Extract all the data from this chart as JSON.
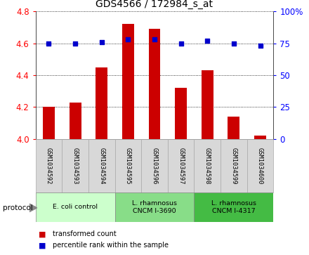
{
  "title": "GDS4566 / 172984_s_at",
  "samples": [
    "GSM1034592",
    "GSM1034593",
    "GSM1034594",
    "GSM1034595",
    "GSM1034596",
    "GSM1034597",
    "GSM1034598",
    "GSM1034599",
    "GSM1034600"
  ],
  "bar_values": [
    4.2,
    4.23,
    4.45,
    4.72,
    4.69,
    4.32,
    4.43,
    4.14,
    4.02
  ],
  "dot_values": [
    75,
    75,
    76,
    78,
    78,
    75,
    77,
    75,
    73
  ],
  "bar_color": "#cc0000",
  "dot_color": "#0000cc",
  "ylim_left": [
    4.0,
    4.8
  ],
  "ylim_right": [
    0,
    100
  ],
  "yticks_left": [
    4.0,
    4.2,
    4.4,
    4.6,
    4.8
  ],
  "yticks_right": [
    0,
    25,
    50,
    75,
    100
  ],
  "ytick_labels_right": [
    "0",
    "25",
    "50",
    "75",
    "100%"
  ],
  "groups": [
    {
      "label": "E. coli control",
      "start": 0,
      "end": 3,
      "color": "#ccffcc"
    },
    {
      "label": "L. rhamnosus\nCNCM I-3690",
      "start": 3,
      "end": 6,
      "color": "#88dd88"
    },
    {
      "label": "L. rhamnosus\nCNCM I-4317",
      "start": 6,
      "end": 9,
      "color": "#44bb44"
    }
  ],
  "legend_bar_label": "transformed count",
  "legend_dot_label": "percentile rank within the sample",
  "protocol_label": "protocol",
  "bar_width": 0.45,
  "bar_base": 4.0
}
